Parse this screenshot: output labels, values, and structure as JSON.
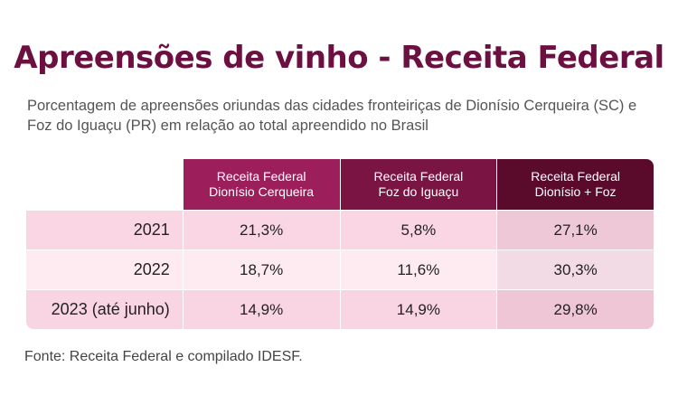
{
  "title": "Apreensões de vinho - Receita Federal",
  "subtitle": "Porcentagem de apreensões oriundas das cidades fronteiriças de Dionísio Cerqueira (SC) e Foz do Iguaçu (PR) em relação ao total apreendido no Brasil",
  "source": "Fonte: Receita Federal e compilado IDESF.",
  "colors": {
    "title": "#6b1040",
    "header_1": "#9c1f5c",
    "header_2": "#7a1543",
    "header_3": "#5a0b2c",
    "row_bg": "#fad6e4"
  },
  "chart_data": {
    "type": "table",
    "columns": [
      "Receita Federal\nDionísio Cerqueira",
      "Receita Federal\nFoz do Iguaçu",
      "Receita Federal\nDionísio + Foz"
    ],
    "rows": [
      {
        "label": "2021",
        "values": [
          "21,3%",
          "5,8%",
          "27,1%"
        ]
      },
      {
        "label": "2022",
        "values": [
          "18,7%",
          "11,6%",
          "30,3%"
        ]
      },
      {
        "label": "2023 (até junho)",
        "values": [
          "14,9%",
          "14,9%",
          "29,8%"
        ]
      }
    ]
  }
}
